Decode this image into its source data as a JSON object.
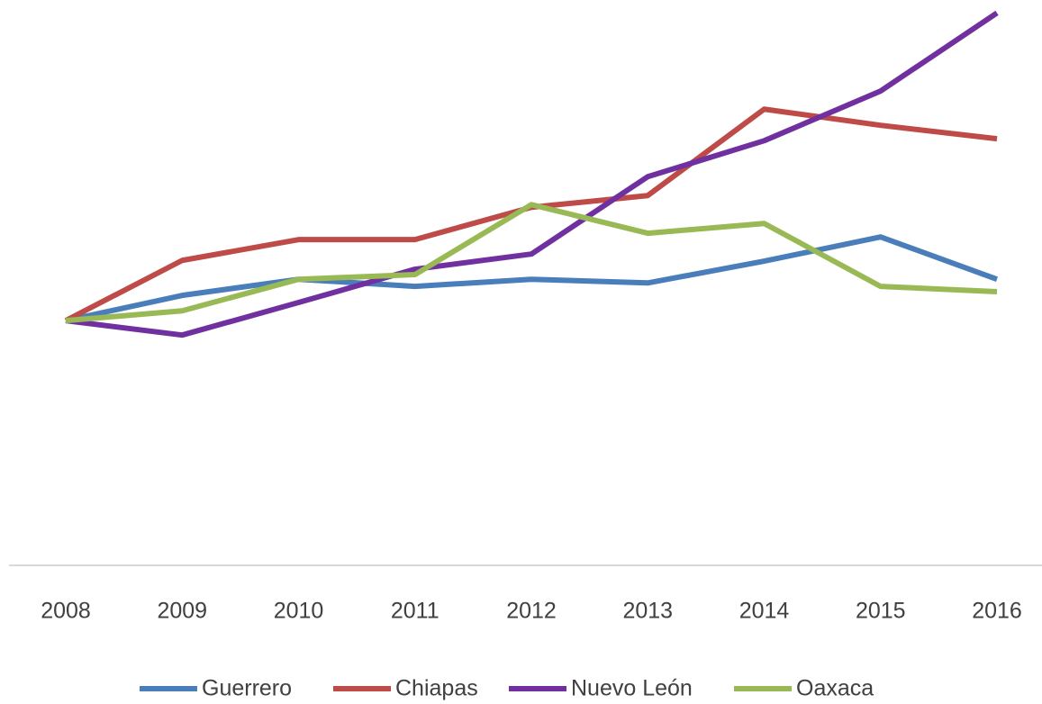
{
  "chart_data": {
    "type": "line",
    "categories": [
      "2008",
      "2009",
      "2010",
      "2011",
      "2012",
      "2013",
      "2014",
      "2015",
      "2016"
    ],
    "series": [
      {
        "name": "Guerrero",
        "color": "#4a7ebb",
        "values": [
          100,
          110.3,
          116.9,
          114.0,
          116.9,
          115.4,
          124.3,
          134.2,
          116.9
        ]
      },
      {
        "name": "Chiapas",
        "color": "#be4b48",
        "values": [
          100,
          124.6,
          133.1,
          133.1,
          146.3,
          151.1,
          186.4,
          179.8,
          174.3
        ]
      },
      {
        "name": "Nuevo León",
        "color": "#7030a0",
        "values": [
          100,
          94.1,
          107.4,
          121.0,
          127.2,
          158.8,
          173.5,
          193.8,
          225.7
        ]
      },
      {
        "name": "Oaxaca",
        "color": "#98b954",
        "values": [
          100,
          104.0,
          116.9,
          118.8,
          147.4,
          135.7,
          139.7,
          114.0,
          111.8
        ]
      }
    ],
    "ylim": [
      0,
      231
    ],
    "legend": "bottom"
  }
}
